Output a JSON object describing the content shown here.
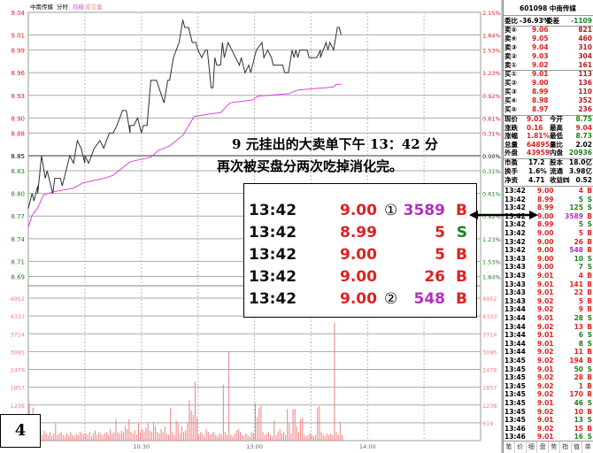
{
  "header": {
    "name": "中南传媒",
    "mode": "分时",
    "avg_label": "均線",
    "vol_label": "成交量"
  },
  "colors": {
    "up": "#e02020",
    "down": "#208020",
    "avg": "#e040e0",
    "price": "#303030",
    "volume": "#f08080",
    "big_order": "#b030c0"
  },
  "chart_data": {
    "type": "line",
    "prev_close": 8.85,
    "price_ticks": [
      "9.04",
      "9.01",
      "8.99",
      "8.96",
      "8.93",
      "8.90",
      "8.88",
      "8.85",
      "8.83",
      "8.80",
      "8.77",
      "8.74",
      "8.71",
      "8.69"
    ],
    "pct_ticks": [
      "2.15%",
      "1.84%",
      "1.53%",
      "1.23%",
      "0.92%",
      "0.61%",
      "0.31%",
      "0.00%",
      "0.31%",
      "0.61%",
      "0.92%",
      "1.23%",
      "1.53%",
      "1.84%"
    ],
    "ylim": [
      8.69,
      9.04
    ],
    "volume_ticks": [
      "4952",
      "4333",
      "3714",
      "3095",
      "2476",
      "1857",
      "1238",
      "619"
    ],
    "volume_ylim": [
      0,
      4952
    ],
    "x_ticks": [
      "10:30",
      "13:00",
      "14:00"
    ],
    "sessions": [
      [
        "09:30",
        "11:30"
      ],
      [
        "13:00",
        "15:00"
      ]
    ],
    "price": [
      [
        "09:30",
        8.78
      ],
      [
        "09:32",
        8.8
      ],
      [
        "09:33",
        8.79
      ],
      [
        "09:35",
        8.81
      ],
      [
        "09:35",
        8.8
      ],
      [
        "09:37",
        8.85
      ],
      [
        "09:39",
        8.82
      ],
      [
        "09:40",
        8.83
      ],
      [
        "09:41",
        8.82
      ],
      [
        "09:43",
        8.8
      ],
      [
        "09:44",
        8.82
      ],
      [
        "09:47",
        8.82
      ],
      [
        "09:48",
        8.81
      ],
      [
        "09:49",
        8.82
      ],
      [
        "09:52",
        8.85
      ],
      [
        "09:54",
        8.84
      ],
      [
        "09:56",
        8.87
      ],
      [
        "09:58",
        8.86
      ],
      [
        "10:00",
        8.84
      ],
      [
        "10:00",
        8.85
      ],
      [
        "10:02",
        8.84
      ],
      [
        "10:05",
        8.86
      ],
      [
        "10:08",
        8.87
      ],
      [
        "10:10",
        8.86
      ],
      [
        "10:13",
        8.88
      ],
      [
        "10:15",
        8.88
      ],
      [
        "10:17",
        8.89
      ],
      [
        "10:20",
        8.91
      ],
      [
        "10:22",
        8.91
      ],
      [
        "10:24",
        8.88
      ],
      [
        "10:24",
        8.89
      ],
      [
        "10:26",
        8.89
      ],
      [
        "10:28",
        8.9
      ],
      [
        "10:30",
        8.88
      ],
      [
        "10:31",
        8.89
      ],
      [
        "10:33",
        8.89
      ],
      [
        "10:34",
        8.92
      ],
      [
        "10:35",
        8.95
      ],
      [
        "10:38",
        8.95
      ],
      [
        "10:42",
        8.92
      ],
      [
        "10:44",
        8.95
      ],
      [
        "10:45",
        8.95
      ],
      [
        "10:47",
        8.98
      ],
      [
        "10:50",
        9.0
      ],
      [
        "10:52",
        9.03
      ],
      [
        "10:53",
        9.02
      ],
      [
        "10:55",
        9.02
      ],
      [
        "10:57",
        9.0
      ],
      [
        "10:59",
        9.0
      ],
      [
        "11:00",
        8.99
      ],
      [
        "11:02",
        8.98
      ],
      [
        "11:04",
        8.99
      ],
      [
        "11:05",
        8.99
      ],
      [
        "11:07",
        8.94
      ],
      [
        "11:08",
        8.94
      ],
      [
        "11:09",
        8.98
      ],
      [
        "11:10",
        8.97
      ],
      [
        "11:12",
        8.97
      ],
      [
        "11:13",
        9.0
      ],
      [
        "11:14",
        8.98
      ],
      [
        "11:16",
        9.0
      ],
      [
        "11:18",
        8.99
      ],
      [
        "11:22",
        8.97
      ],
      [
        "11:23",
        8.98
      ],
      [
        "11:25",
        8.96
      ],
      [
        "11:27",
        8.97
      ],
      [
        "11:28",
        8.96
      ],
      [
        "11:29",
        8.97
      ],
      [
        "13:01",
        8.99
      ],
      [
        "13:04",
        9.0
      ],
      [
        "13:05",
        8.98
      ],
      [
        "13:07",
        8.99
      ],
      [
        "13:09",
        8.98
      ],
      [
        "13:10",
        8.97
      ],
      [
        "13:15",
        8.97
      ],
      [
        "13:16",
        8.96
      ],
      [
        "13:18",
        8.96
      ],
      [
        "13:20",
        8.99
      ],
      [
        "13:21",
        8.98
      ],
      [
        "13:22",
        8.99
      ],
      [
        "13:23",
        8.98
      ],
      [
        "13:24",
        8.99
      ],
      [
        "13:28",
        8.99
      ],
      [
        "13:29",
        8.98
      ],
      [
        "13:33",
        8.98
      ],
      [
        "13:35",
        8.99
      ],
      [
        "13:35",
        8.98
      ],
      [
        "13:38",
        9.0
      ],
      [
        "13:39",
        8.99
      ],
      [
        "13:40",
        9.0
      ],
      [
        "13:42",
        8.99
      ],
      [
        "13:44",
        9.02
      ],
      [
        "13:45",
        9.02
      ],
      [
        "13:46",
        9.01
      ]
    ],
    "average": [
      [
        "09:30",
        8.755
      ],
      [
        "09:32",
        8.771
      ],
      [
        "09:35",
        8.781
      ],
      [
        "09:38",
        8.798
      ],
      [
        "09:43",
        8.802
      ],
      [
        "09:54",
        8.807
      ],
      [
        "09:59",
        8.814
      ],
      [
        "10:10",
        8.82
      ],
      [
        "10:15",
        8.824
      ],
      [
        "10:24",
        8.842
      ],
      [
        "10:35",
        8.848
      ],
      [
        "10:39",
        8.857
      ],
      [
        "10:45",
        8.863
      ],
      [
        "10:52",
        8.877
      ],
      [
        "10:58",
        8.902
      ],
      [
        "11:08",
        8.906
      ],
      [
        "11:12",
        8.907
      ],
      [
        "11:17",
        8.92
      ],
      [
        "11:29",
        8.924
      ],
      [
        "13:02",
        8.929
      ],
      [
        "13:18",
        8.932
      ],
      [
        "13:23",
        8.937
      ],
      [
        "13:42",
        8.941
      ],
      [
        "13:43",
        8.944
      ],
      [
        "13:46",
        8.945
      ]
    ],
    "volume_per_minute_from_0930": [
      1300,
      300,
      1150,
      400,
      200,
      250,
      300,
      200,
      350,
      250,
      200,
      300,
      150,
      250,
      600,
      200,
      250,
      300,
      200,
      150,
      250,
      200,
      300,
      200,
      150,
      250,
      200,
      300,
      250,
      200,
      250,
      200,
      300,
      150,
      250,
      350,
      200,
      300,
      250,
      200,
      250,
      300,
      200,
      400,
      250,
      300,
      750,
      300,
      250,
      350,
      300,
      500,
      400,
      750,
      300,
      250,
      350,
      200,
      600,
      300,
      400,
      300,
      450,
      600,
      350,
      300,
      650,
      500,
      300,
      250,
      400,
      300,
      500,
      250,
      200,
      1150,
      300,
      200,
      700,
      600,
      250,
      500,
      300,
      350,
      600,
      1400,
      1050,
      900,
      2050,
      800,
      200,
      300,
      250,
      150,
      400,
      300,
      200,
      250,
      300,
      200,
      150,
      250,
      200,
      1950,
      300,
      200,
      3100,
      200,
      150,
      250,
      350,
      400,
      300,
      200,
      150,
      250,
      200,
      150,
      300,
      250,
      1300,
      800,
      1150,
      1200,
      300,
      200,
      250,
      300,
      200,
      150,
      700,
      200,
      300,
      400,
      250,
      300,
      200,
      1100,
      600,
      250,
      1100,
      1100,
      500,
      300,
      750,
      800,
      200,
      150,
      200,
      250,
      200,
      150,
      200,
      1150,
      1200,
      300,
      200,
      150,
      250,
      200,
      250,
      200,
      4100,
      300,
      200,
      650,
      200
    ]
  },
  "annotation": {
    "line1": "9 元挂出的大卖单下午 13：42 分",
    "line2": "再次被买盘分两次吃掉消化完。",
    "rows": [
      {
        "time": "13:42",
        "price": "9.00",
        "mark": "①",
        "vol": "3589",
        "side": "B",
        "big": true,
        "pc": "up"
      },
      {
        "time": "13:42",
        "price": "8.99",
        "mark": "",
        "vol": "5",
        "side": "S",
        "big": false,
        "pc": "up"
      },
      {
        "time": "13:42",
        "price": "9.00",
        "mark": "",
        "vol": "5",
        "side": "B",
        "big": false,
        "pc": "up"
      },
      {
        "time": "13:42",
        "price": "9.00",
        "mark": "",
        "vol": "26",
        "side": "B",
        "big": false,
        "pc": "up"
      },
      {
        "time": "13:42",
        "price": "9.00",
        "mark": "②",
        "vol": "548",
        "side": "B",
        "big": true,
        "pc": "up"
      }
    ],
    "figure_number": "4"
  },
  "panel": {
    "title": "601098 中南传媒",
    "wb_label": "委比",
    "wb_value": "-36.93%",
    "wc_label": "委差",
    "wc_value": "-1109",
    "asks": [
      [
        "卖⑤",
        "9.06",
        "821"
      ],
      [
        "卖④",
        "9.05",
        "460"
      ],
      [
        "卖③",
        "9.04",
        "310"
      ],
      [
        "卖②",
        "9.03",
        "304"
      ],
      [
        "卖①",
        "9.02",
        "161"
      ]
    ],
    "bids": [
      [
        "买①",
        "9.01",
        "113"
      ],
      [
        "买②",
        "9.00",
        "136"
      ],
      [
        "买③",
        "8.99",
        "110"
      ],
      [
        "买④",
        "8.98",
        "352"
      ],
      [
        "买⑤",
        "8.97",
        "236"
      ]
    ],
    "stats": [
      [
        "现价",
        "9.01",
        "up",
        "今开",
        "8.75",
        "down"
      ],
      [
        "涨跌",
        "0.16",
        "up",
        "最高",
        "9.04",
        "up"
      ],
      [
        "涨幅",
        "1.81%",
        "up",
        "最低",
        "8.73",
        "down"
      ],
      [
        "总量",
        "64895",
        "up",
        "量比",
        "2.02",
        "flat"
      ],
      [
        "外盘",
        "43959",
        "up",
        "内盘",
        "20936",
        "down"
      ]
    ],
    "fundamentals": [
      [
        "市盈",
        "17.2",
        "股本",
        "18.0亿"
      ],
      [
        "换手",
        "1.6%",
        "流通",
        "3.98亿"
      ],
      [
        "净资",
        "4.71",
        "收益㈣",
        "0.52"
      ]
    ],
    "ticks": [
      [
        "13:42",
        "9.00",
        "4",
        "B"
      ],
      [
        "13:42",
        "8.99",
        "5",
        "S"
      ],
      [
        "13:42",
        "8.99",
        "125",
        "S"
      ],
      [
        "13:42",
        "9.00",
        "3589",
        "B"
      ],
      [
        "13:42",
        "8.99",
        "5",
        "S"
      ],
      [
        "13:42",
        "9.00",
        "5",
        "B"
      ],
      [
        "13:42",
        "9.00",
        "26",
        "B"
      ],
      [
        "13:42",
        "9.00",
        "548",
        "B"
      ],
      [
        "13:43",
        "9.00",
        "10",
        "S"
      ],
      [
        "13:43",
        "9.00",
        "7",
        "S"
      ],
      [
        "13:43",
        "9.01",
        "4",
        "B"
      ],
      [
        "13:43",
        "9.01",
        "141",
        "B"
      ],
      [
        "13:43",
        "9.01",
        "22",
        "B"
      ],
      [
        "13:43",
        "9.02",
        "5",
        "B"
      ],
      [
        "13:44",
        "9.02",
        "9",
        "B"
      ],
      [
        "13:44",
        "9.01",
        "28",
        "S"
      ],
      [
        "13:44",
        "9.02",
        "13",
        "B"
      ],
      [
        "13:44",
        "9.01",
        "6",
        "S"
      ],
      [
        "13:44",
        "9.01",
        "8",
        "S"
      ],
      [
        "13:44",
        "9.02",
        "11",
        "B"
      ],
      [
        "13:45",
        "9.02",
        "194",
        "B"
      ],
      [
        "13:45",
        "9.01",
        "50",
        "S"
      ],
      [
        "13:45",
        "9.02",
        "28",
        "B"
      ],
      [
        "13:45",
        "9.02",
        "1",
        "B"
      ],
      [
        "13:45",
        "9.02",
        "170",
        "B"
      ],
      [
        "13:45",
        "9.01",
        "46",
        "S"
      ],
      [
        "13:45",
        "9.02",
        "10",
        "B"
      ],
      [
        "13:45",
        "9.01",
        "13",
        "S"
      ],
      [
        "13:46",
        "9.02",
        "15",
        "B"
      ],
      [
        "13:46",
        "9.01",
        "16",
        "S"
      ]
    ],
    "big_ticks": [
      "3589",
      "548"
    ],
    "tabs": [
      "笔",
      "价",
      "细",
      "盘",
      "势",
      "指",
      "值",
      "单"
    ]
  }
}
